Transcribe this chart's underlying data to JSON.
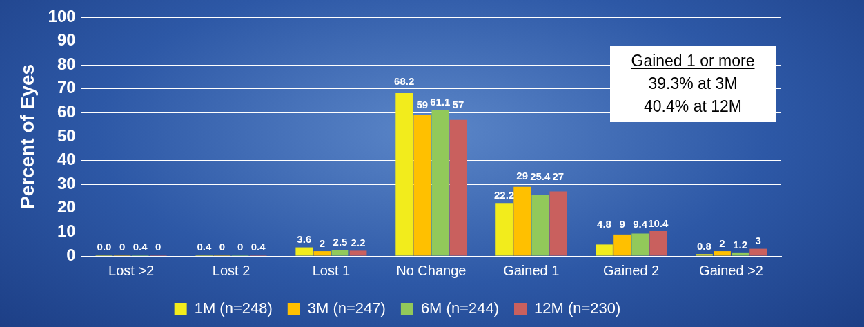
{
  "chart_data": {
    "type": "bar",
    "ylabel": "Percent of Eyes",
    "categories": [
      "Lost >2",
      "Lost 2",
      "Lost 1",
      "No Change",
      "Gained 1",
      "Gained 2",
      "Gained >2"
    ],
    "series": [
      {
        "name": "1M (n=248)",
        "color": "#f2ec1c",
        "values": [
          0.0,
          0.4,
          3.6,
          68.2,
          22.2,
          4.8,
          0.8
        ],
        "value_labels": [
          "0.0",
          "0.4",
          "3.6",
          "68.2",
          "22.2",
          "4.8",
          "0.8"
        ]
      },
      {
        "name": "3M (n=247)",
        "color": "#ffc000",
        "values": [
          0,
          0,
          2,
          59,
          29,
          9,
          2
        ],
        "value_labels": [
          "0",
          "0",
          "2",
          "59",
          "29",
          "9",
          "2"
        ]
      },
      {
        "name": "6M (n=244)",
        "color": "#92c95a",
        "values": [
          0.4,
          0,
          2.5,
          61.1,
          25.4,
          9.4,
          1.2
        ],
        "value_labels": [
          "0.4",
          "0",
          "2.5",
          "61.1",
          "25.4",
          "9.4",
          "1.2"
        ]
      },
      {
        "name": "12M (n=230)",
        "color": "#c9605e",
        "values": [
          0,
          0.4,
          2.2,
          57,
          27,
          10.4,
          3
        ],
        "value_labels": [
          "0",
          "0.4",
          "2.2",
          "57",
          "27",
          "10.4",
          "3"
        ]
      }
    ],
    "ylim": [
      0,
      100
    ],
    "yticks": [
      0,
      10,
      20,
      30,
      40,
      50,
      60,
      70,
      80,
      90,
      100
    ],
    "grid": "y",
    "legend": "bottom",
    "annotations": [
      "Gained 1 or more",
      "39.3% at 3M",
      "40.4% at 12M"
    ]
  }
}
